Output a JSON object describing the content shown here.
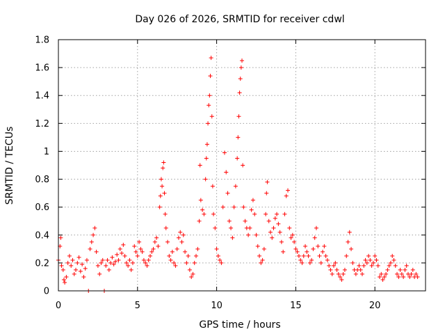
{
  "chart_data": {
    "type": "scatter",
    "title": "Day 026 of 2026, SRMTID for receiver cdwl",
    "xlabel": "GPS time / hours",
    "ylabel": "SRMTID / TECUs",
    "xlim": [
      0,
      23.2
    ],
    "ylim": [
      0,
      1.8
    ],
    "xticks": [
      0,
      5,
      10,
      15,
      20
    ],
    "xtick_labels": [
      "0",
      "5",
      "10",
      "15",
      "20"
    ],
    "yticks": [
      0,
      0.2,
      0.4,
      0.6,
      0.8,
      1.0,
      1.2,
      1.4,
      1.6,
      1.8
    ],
    "ytick_labels": [
      "0",
      "0.2",
      "0.4",
      "0.6",
      "0.8",
      "1",
      "1.2",
      "1.4",
      "1.6",
      "1.8"
    ],
    "grid": true,
    "marker": "plus",
    "series": [
      {
        "name": "SRMTID",
        "color": "#ff0000",
        "points": [
          [
            0.0,
            0.22
          ],
          [
            0.1,
            0.32
          ],
          [
            0.15,
            0.38
          ],
          [
            0.2,
            0.18
          ],
          [
            0.3,
            0.15
          ],
          [
            0.35,
            0.08
          ],
          [
            0.4,
            0.06
          ],
          [
            0.5,
            0.1
          ],
          [
            0.6,
            0.2
          ],
          [
            0.7,
            0.25
          ],
          [
            0.8,
            0.18
          ],
          [
            0.9,
            0.22
          ],
          [
            1.0,
            0.12
          ],
          [
            1.1,
            0.15
          ],
          [
            1.2,
            0.2
          ],
          [
            1.3,
            0.24
          ],
          [
            1.4,
            0.14
          ],
          [
            1.5,
            0.19
          ],
          [
            1.6,
            0.1
          ],
          [
            1.7,
            0.16
          ],
          [
            1.8,
            0.22
          ],
          [
            1.9,
            0.0
          ],
          [
            2.0,
            0.3
          ],
          [
            2.1,
            0.35
          ],
          [
            2.2,
            0.4
          ],
          [
            2.3,
            0.45
          ],
          [
            2.4,
            0.28
          ],
          [
            2.5,
            0.18
          ],
          [
            2.6,
            0.12
          ],
          [
            2.7,
            0.2
          ],
          [
            2.8,
            0.22
          ],
          [
            2.9,
            0.0
          ],
          [
            3.0,
            0.18
          ],
          [
            3.1,
            0.22
          ],
          [
            3.2,
            0.15
          ],
          [
            3.3,
            0.2
          ],
          [
            3.4,
            0.24
          ],
          [
            3.5,
            0.19
          ],
          [
            3.6,
            0.21
          ],
          [
            3.7,
            0.26
          ],
          [
            3.8,
            0.22
          ],
          [
            3.9,
            0.3
          ],
          [
            4.0,
            0.27
          ],
          [
            4.1,
            0.33
          ],
          [
            4.2,
            0.25
          ],
          [
            4.3,
            0.2
          ],
          [
            4.4,
            0.18
          ],
          [
            4.5,
            0.22
          ],
          [
            4.6,
            0.15
          ],
          [
            4.7,
            0.2
          ],
          [
            4.8,
            0.32
          ],
          [
            4.9,
            0.28
          ],
          [
            5.0,
            0.25
          ],
          [
            5.1,
            0.35
          ],
          [
            5.2,
            0.3
          ],
          [
            5.3,
            0.28
          ],
          [
            5.4,
            0.22
          ],
          [
            5.5,
            0.2
          ],
          [
            5.6,
            0.18
          ],
          [
            5.7,
            0.22
          ],
          [
            5.8,
            0.25
          ],
          [
            5.9,
            0.28
          ],
          [
            6.0,
            0.3
          ],
          [
            6.1,
            0.35
          ],
          [
            6.2,
            0.38
          ],
          [
            6.3,
            0.32
          ],
          [
            6.4,
            0.6
          ],
          [
            6.45,
            0.68
          ],
          [
            6.5,
            0.8
          ],
          [
            6.55,
            0.75
          ],
          [
            6.6,
            0.88
          ],
          [
            6.65,
            0.92
          ],
          [
            6.7,
            0.7
          ],
          [
            6.75,
            0.55
          ],
          [
            6.8,
            0.45
          ],
          [
            6.9,
            0.35
          ],
          [
            7.0,
            0.25
          ],
          [
            7.1,
            0.22
          ],
          [
            7.2,
            0.28
          ],
          [
            7.3,
            0.2
          ],
          [
            7.4,
            0.18
          ],
          [
            7.5,
            0.3
          ],
          [
            7.6,
            0.38
          ],
          [
            7.7,
            0.42
          ],
          [
            7.8,
            0.35
          ],
          [
            7.9,
            0.4
          ],
          [
            8.0,
            0.28
          ],
          [
            8.1,
            0.2
          ],
          [
            8.2,
            0.25
          ],
          [
            8.3,
            0.15
          ],
          [
            8.4,
            0.1
          ],
          [
            8.5,
            0.12
          ],
          [
            8.6,
            0.2
          ],
          [
            8.7,
            0.25
          ],
          [
            8.8,
            0.3
          ],
          [
            8.9,
            0.5
          ],
          [
            8.95,
            0.9
          ],
          [
            9.0,
            0.65
          ],
          [
            9.1,
            0.58
          ],
          [
            9.2,
            0.55
          ],
          [
            9.3,
            0.8
          ],
          [
            9.35,
            0.95
          ],
          [
            9.4,
            1.05
          ],
          [
            9.45,
            1.2
          ],
          [
            9.5,
            1.33
          ],
          [
            9.55,
            1.4
          ],
          [
            9.6,
            1.54
          ],
          [
            9.65,
            1.67
          ],
          [
            9.7,
            1.25
          ],
          [
            9.75,
            0.75
          ],
          [
            9.8,
            0.55
          ],
          [
            9.9,
            0.45
          ],
          [
            10.0,
            0.3
          ],
          [
            10.1,
            0.25
          ],
          [
            10.2,
            0.22
          ],
          [
            10.3,
            0.2
          ],
          [
            10.4,
            0.6
          ],
          [
            10.5,
            0.99
          ],
          [
            10.6,
            0.85
          ],
          [
            10.7,
            0.7
          ],
          [
            10.8,
            0.5
          ],
          [
            10.9,
            0.45
          ],
          [
            11.0,
            0.38
          ],
          [
            11.1,
            0.6
          ],
          [
            11.2,
            0.75
          ],
          [
            11.3,
            0.95
          ],
          [
            11.35,
            1.1
          ],
          [
            11.4,
            1.25
          ],
          [
            11.45,
            1.42
          ],
          [
            11.5,
            1.52
          ],
          [
            11.55,
            1.6
          ],
          [
            11.6,
            1.65
          ],
          [
            11.65,
            0.9
          ],
          [
            11.7,
            0.6
          ],
          [
            11.8,
            0.5
          ],
          [
            11.9,
            0.45
          ],
          [
            12.0,
            0.4
          ],
          [
            12.1,
            0.45
          ],
          [
            12.2,
            0.58
          ],
          [
            12.3,
            0.65
          ],
          [
            12.4,
            0.55
          ],
          [
            12.5,
            0.4
          ],
          [
            12.6,
            0.32
          ],
          [
            12.7,
            0.25
          ],
          [
            12.8,
            0.2
          ],
          [
            12.9,
            0.22
          ],
          [
            13.0,
            0.3
          ],
          [
            13.1,
            0.55
          ],
          [
            13.15,
            0.7
          ],
          [
            13.2,
            0.78
          ],
          [
            13.3,
            0.5
          ],
          [
            13.4,
            0.42
          ],
          [
            13.5,
            0.38
          ],
          [
            13.6,
            0.45
          ],
          [
            13.7,
            0.52
          ],
          [
            13.8,
            0.55
          ],
          [
            13.9,
            0.48
          ],
          [
            14.0,
            0.42
          ],
          [
            14.1,
            0.35
          ],
          [
            14.2,
            0.28
          ],
          [
            14.3,
            0.55
          ],
          [
            14.4,
            0.68
          ],
          [
            14.5,
            0.72
          ],
          [
            14.6,
            0.45
          ],
          [
            14.7,
            0.38
          ],
          [
            14.8,
            0.4
          ],
          [
            14.9,
            0.35
          ],
          [
            15.0,
            0.3
          ],
          [
            15.1,
            0.28
          ],
          [
            15.2,
            0.25
          ],
          [
            15.3,
            0.22
          ],
          [
            15.4,
            0.2
          ],
          [
            15.5,
            0.25
          ],
          [
            15.6,
            0.32
          ],
          [
            15.7,
            0.28
          ],
          [
            15.8,
            0.25
          ],
          [
            15.9,
            0.2
          ],
          [
            16.0,
            0.22
          ],
          [
            16.1,
            0.3
          ],
          [
            16.2,
            0.38
          ],
          [
            16.3,
            0.45
          ],
          [
            16.4,
            0.32
          ],
          [
            16.5,
            0.25
          ],
          [
            16.6,
            0.2
          ],
          [
            16.7,
            0.28
          ],
          [
            16.8,
            0.32
          ],
          [
            16.9,
            0.25
          ],
          [
            17.0,
            0.22
          ],
          [
            17.1,
            0.18
          ],
          [
            17.2,
            0.15
          ],
          [
            17.3,
            0.12
          ],
          [
            17.4,
            0.18
          ],
          [
            17.5,
            0.2
          ],
          [
            17.6,
            0.15
          ],
          [
            17.7,
            0.12
          ],
          [
            17.8,
            0.1
          ],
          [
            17.9,
            0.08
          ],
          [
            18.0,
            0.12
          ],
          [
            18.1,
            0.15
          ],
          [
            18.2,
            0.25
          ],
          [
            18.3,
            0.35
          ],
          [
            18.4,
            0.42
          ],
          [
            18.5,
            0.3
          ],
          [
            18.6,
            0.2
          ],
          [
            18.7,
            0.15
          ],
          [
            18.8,
            0.12
          ],
          [
            18.9,
            0.15
          ],
          [
            19.0,
            0.18
          ],
          [
            19.1,
            0.15
          ],
          [
            19.2,
            0.12
          ],
          [
            19.3,
            0.18
          ],
          [
            19.4,
            0.22
          ],
          [
            19.5,
            0.2
          ],
          [
            19.6,
            0.25
          ],
          [
            19.7,
            0.22
          ],
          [
            19.8,
            0.18
          ],
          [
            19.9,
            0.2
          ],
          [
            20.0,
            0.25
          ],
          [
            20.1,
            0.22
          ],
          [
            20.2,
            0.18
          ],
          [
            20.3,
            0.1
          ],
          [
            20.4,
            0.12
          ],
          [
            20.5,
            0.08
          ],
          [
            20.6,
            0.1
          ],
          [
            20.7,
            0.12
          ],
          [
            20.8,
            0.15
          ],
          [
            20.9,
            0.18
          ],
          [
            21.0,
            0.2
          ],
          [
            21.1,
            0.25
          ],
          [
            21.2,
            0.22
          ],
          [
            21.3,
            0.18
          ],
          [
            21.4,
            0.12
          ],
          [
            21.5,
            0.1
          ],
          [
            21.6,
            0.15
          ],
          [
            21.7,
            0.12
          ],
          [
            21.8,
            0.1
          ],
          [
            21.9,
            0.15
          ],
          [
            22.0,
            0.18
          ],
          [
            22.1,
            0.12
          ],
          [
            22.2,
            0.1
          ],
          [
            22.3,
            0.12
          ],
          [
            22.4,
            0.15
          ],
          [
            22.5,
            0.1
          ],
          [
            22.6,
            0.12
          ],
          [
            22.7,
            0.1
          ]
        ]
      }
    ]
  }
}
